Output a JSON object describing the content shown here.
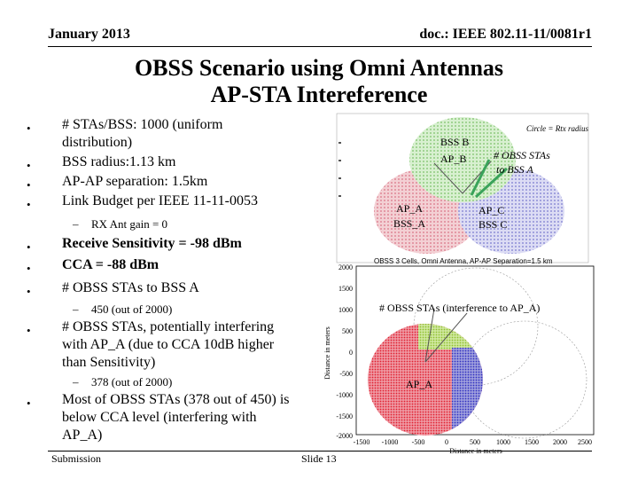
{
  "header": {
    "date": "January 2013",
    "doc": "doc.: IEEE 802.11-11/0081r1"
  },
  "title": {
    "line1": "OBSS Scenario using Omni Antennas",
    "line2": "AP-STA Intereference"
  },
  "bullets": [
    {
      "text": "# STAs/BSS: 1000 (uniform",
      "text2": "distribution)"
    },
    {
      "text": "BSS radius:1.13 km"
    },
    {
      "text": "AP-AP separation: 1.5km"
    },
    {
      "text": "Link Budget per IEEE 11-11-0053"
    },
    {
      "sub": "RX Ant gain = 0"
    },
    {
      "text": "Receive Sensitivity = -98 dBm"
    },
    {
      "text": "CCA = -88 dBm"
    },
    {
      "text": "# OBSS  STAs to BSS A"
    },
    {
      "sub": "450 (out of 2000)"
    },
    {
      "text": "# OBSS STAs, potentially interfering",
      "text2": "with AP_A (due to CCA 10dB higher",
      "text3": "than Sensitivity)"
    },
    {
      "sub": "378 (out of 2000)"
    },
    {
      "text": "Most of OBSS STAs (378 out of 450) is",
      "text2": "below CCA level (interfering with",
      "text3": "AP_A)"
    }
  ],
  "top_figure": {
    "caption": "Circle = Rtx radius",
    "title": "OBSS 3 Cells, Omni Antenna, AP-AP Separation=1.5 km",
    "labels": {
      "bss_b": "BSS B",
      "ap_b": "AP_B",
      "ap_a": "AP_A",
      "bss_a": "BSS_A",
      "ap_c": "AP_C",
      "bss_c": "BSS C",
      "obss": "# OBSS STAs",
      "obss2": "to BSS A"
    }
  },
  "bottom_figure": {
    "annotation": "# OBSS STAs (interference to AP_A)",
    "ap_label": "AP_A",
    "xlabel": "Distance in meters",
    "ylabel": "Distance in meters",
    "yticks": [
      "2000",
      "1500",
      "1000",
      "500",
      "0",
      "-500",
      "-1000",
      "-1500",
      "-2000"
    ],
    "xticks": [
      "-1500",
      "-1000",
      "-500",
      "0",
      "500",
      "1000",
      "1500",
      "2000",
      "2500"
    ]
  },
  "footer": {
    "left": "Submission",
    "center": "Slide 13"
  },
  "colors": {
    "bss_a": "#e8a0a8",
    "bss_b": "#a8e0a0",
    "bss_c": "#b0b0e8",
    "red_dots": "#e02030",
    "green_dots": "#90c030",
    "blue_dots": "#3030c0"
  }
}
